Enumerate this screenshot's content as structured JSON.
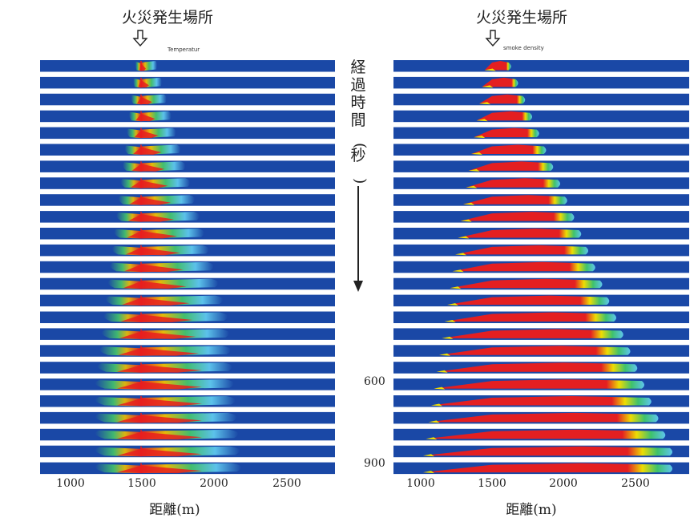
{
  "panels": [
    {
      "id": "temperature",
      "fire_label": "火災発生場所",
      "inner_title": "Temperatur",
      "x_ticks": [
        "1000",
        "1500",
        "2000",
        "2500"
      ],
      "x_axis_label": "距離(m)",
      "fire_location_m": 1500,
      "rows": 25
    },
    {
      "id": "smoke",
      "fire_label": "火災発生場所",
      "inner_title": "smoke density",
      "x_ticks": [
        "1000",
        "1500",
        "2000",
        "2500"
      ],
      "x_axis_label": "距離(m)",
      "fire_location_m": 1500,
      "rows": 25
    }
  ],
  "time_axis": {
    "label": "経過時間(秒)",
    "mark_600": "600",
    "mark_900": "900"
  },
  "colors": {
    "background_band": "#1a48a6",
    "hot": "#e81e1e",
    "warm": "#f2e000",
    "mid": "#3fc46a",
    "cool": "#5fc8ee"
  }
}
